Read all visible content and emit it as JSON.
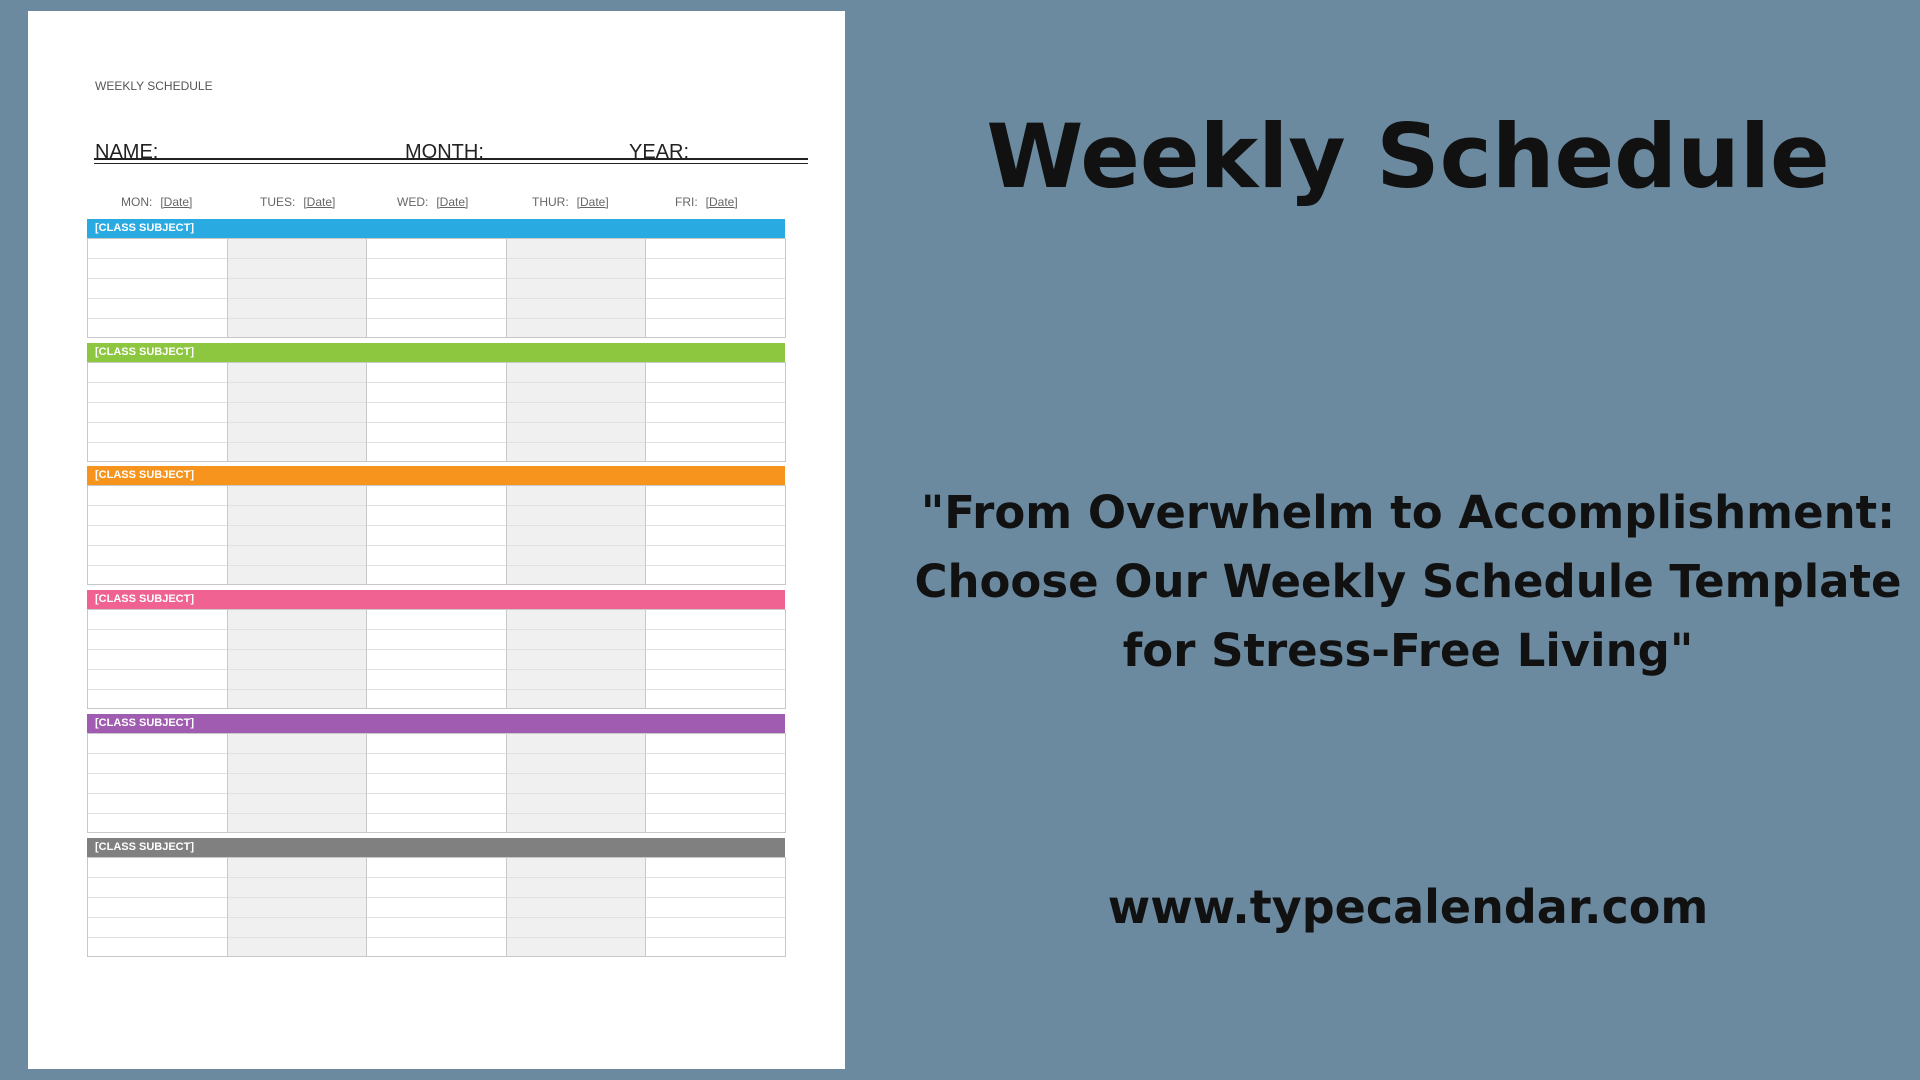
{
  "sheet": {
    "title": "WEEKLY SCHEDULE",
    "fields": [
      "NAME:",
      "MONTH:",
      "YEAR:"
    ],
    "days": [
      {
        "label": "MON:",
        "date": "[Date]"
      },
      {
        "label": "TUES:",
        "date": "[Date]"
      },
      {
        "label": "WED:",
        "date": "[Date]"
      },
      {
        "label": "THUR:",
        "date": "[Date]"
      },
      {
        "label": "FRI:",
        "date": "[Date]"
      }
    ],
    "subjects": [
      {
        "label": "[CLASS SUBJECT]",
        "color": "#29abe2"
      },
      {
        "label": "[CLASS SUBJECT]",
        "color": "#8dc63f"
      },
      {
        "label": "[CLASS SUBJECT]",
        "color": "#f7941d"
      },
      {
        "label": "[CLASS SUBJECT]",
        "color": "#f06292"
      },
      {
        "label": "[CLASS SUBJECT]",
        "color": "#a05cb0"
      },
      {
        "label": "[CLASS SUBJECT]",
        "color": "#808080"
      }
    ]
  },
  "promo": {
    "title": "Weekly Schedule",
    "quote": [
      "\"From Overwhelm to Accomplishment:",
      "Choose Our Weekly Schedule Template",
      "for Stress-Free Living\""
    ],
    "url": "www.typecalendar.com"
  }
}
